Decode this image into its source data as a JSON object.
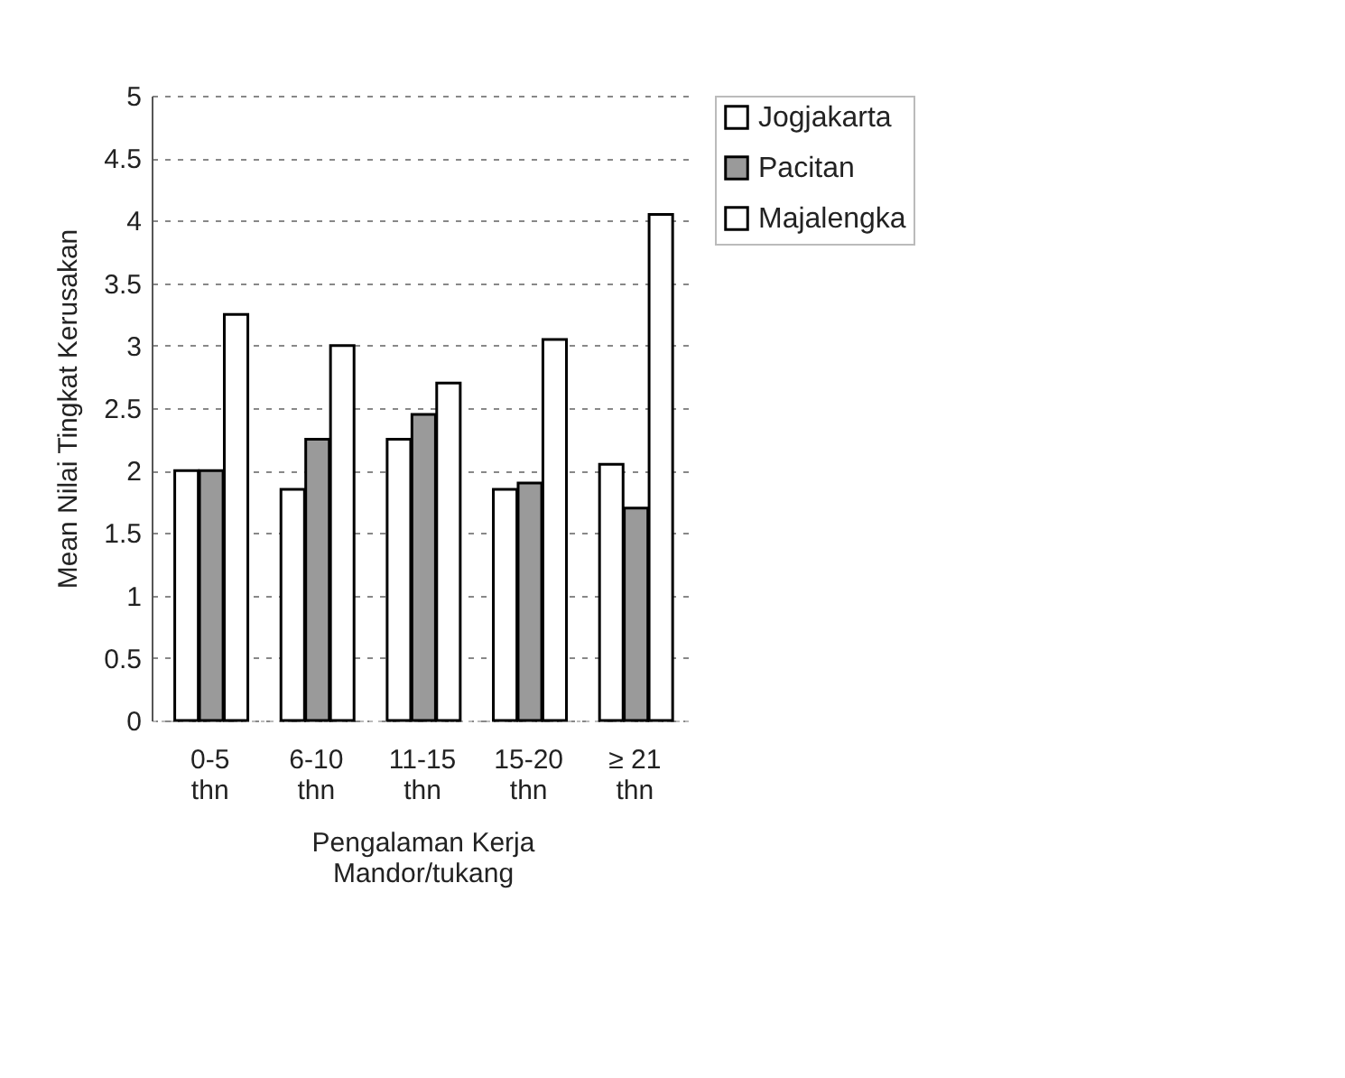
{
  "chart_data": {
    "type": "bar",
    "xlabel": "Pengalaman Kerja Mandor/tukang",
    "ylabel": "Mean Nilai Tingkat Kerusakan",
    "categories": [
      "0-5 thn",
      "6-10 thn",
      "11-15 thn",
      "15-20 thn",
      "≥ 21 thn"
    ],
    "series": [
      {
        "name": "Jogjakarta",
        "color": "#ffffff",
        "values": [
          2.0,
          1.85,
          2.25,
          1.85,
          2.05
        ]
      },
      {
        "name": "Pacitan",
        "color": "#9a9a9a",
        "values": [
          2.0,
          2.25,
          2.45,
          1.9,
          1.7
        ]
      },
      {
        "name": "Majalengka",
        "color": "#ffffff",
        "values": [
          3.25,
          3.0,
          2.7,
          3.05,
          4.05
        ]
      }
    ],
    "ylim": [
      0,
      5
    ],
    "yticks": [
      0,
      0.5,
      1,
      1.5,
      2,
      2.5,
      3,
      3.5,
      4,
      4.5,
      5
    ],
    "grid": "y",
    "legend": "right"
  }
}
